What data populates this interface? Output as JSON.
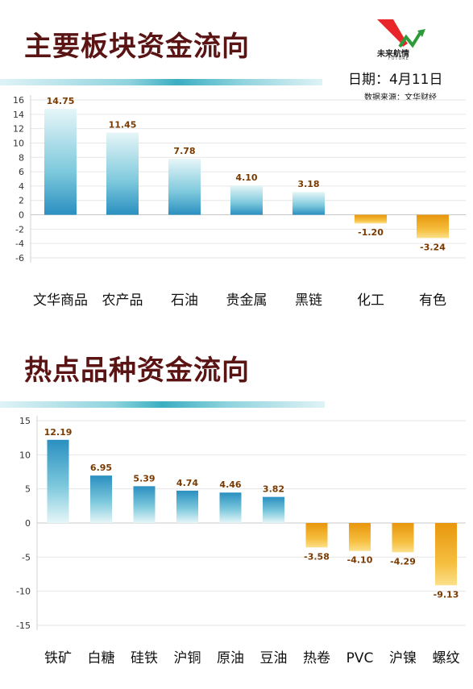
{
  "header": {
    "logo_text": "未来航情",
    "logo_sub": "FUTURE",
    "date_label": "日期：4月11日",
    "source_label": "数据来源：文华财经"
  },
  "colors": {
    "title": "#5a1414",
    "positive_bar": "#2a8fc0",
    "negative_bar": "#f0a010",
    "value_label": "#7a3a00"
  },
  "chart_data": [
    {
      "type": "bar",
      "title": "主要板块资金流向",
      "categories": [
        "文华商品",
        "农产品",
        "石油",
        "贵金属",
        "黑链",
        "化工",
        "有色"
      ],
      "values": [
        14.75,
        11.45,
        7.78,
        4.1,
        3.18,
        -1.2,
        -3.24
      ],
      "value_labels": [
        "14.75",
        "11.45",
        "7.78",
        "4.10",
        "3.18",
        "-1.20",
        "-3.24"
      ],
      "yticks": [
        "16",
        "14",
        "12",
        "10",
        "8",
        "6",
        "4",
        "2",
        "0",
        "-2",
        "-4",
        "-6"
      ],
      "ylim": [
        -6,
        16
      ],
      "grid": true
    },
    {
      "type": "bar",
      "title": "热点品种资金流向",
      "categories": [
        "铁矿",
        "白糖",
        "硅铁",
        "沪铜",
        "原油",
        "豆油",
        "热卷",
        "PVC",
        "沪镍",
        "螺纹"
      ],
      "values": [
        12.19,
        6.95,
        5.39,
        4.74,
        4.46,
        3.82,
        -3.58,
        -4.1,
        -4.29,
        -9.13
      ],
      "value_labels": [
        "12.19",
        "6.95",
        "5.39",
        "4.74",
        "4.46",
        "3.82",
        "-3.58",
        "-4.10",
        "-4.29",
        "-9.13"
      ],
      "yticks": [
        "15",
        "10",
        "5",
        "0",
        "-5",
        "-10",
        "-15"
      ],
      "ylim": [
        -15,
        15
      ],
      "grid": true
    }
  ]
}
